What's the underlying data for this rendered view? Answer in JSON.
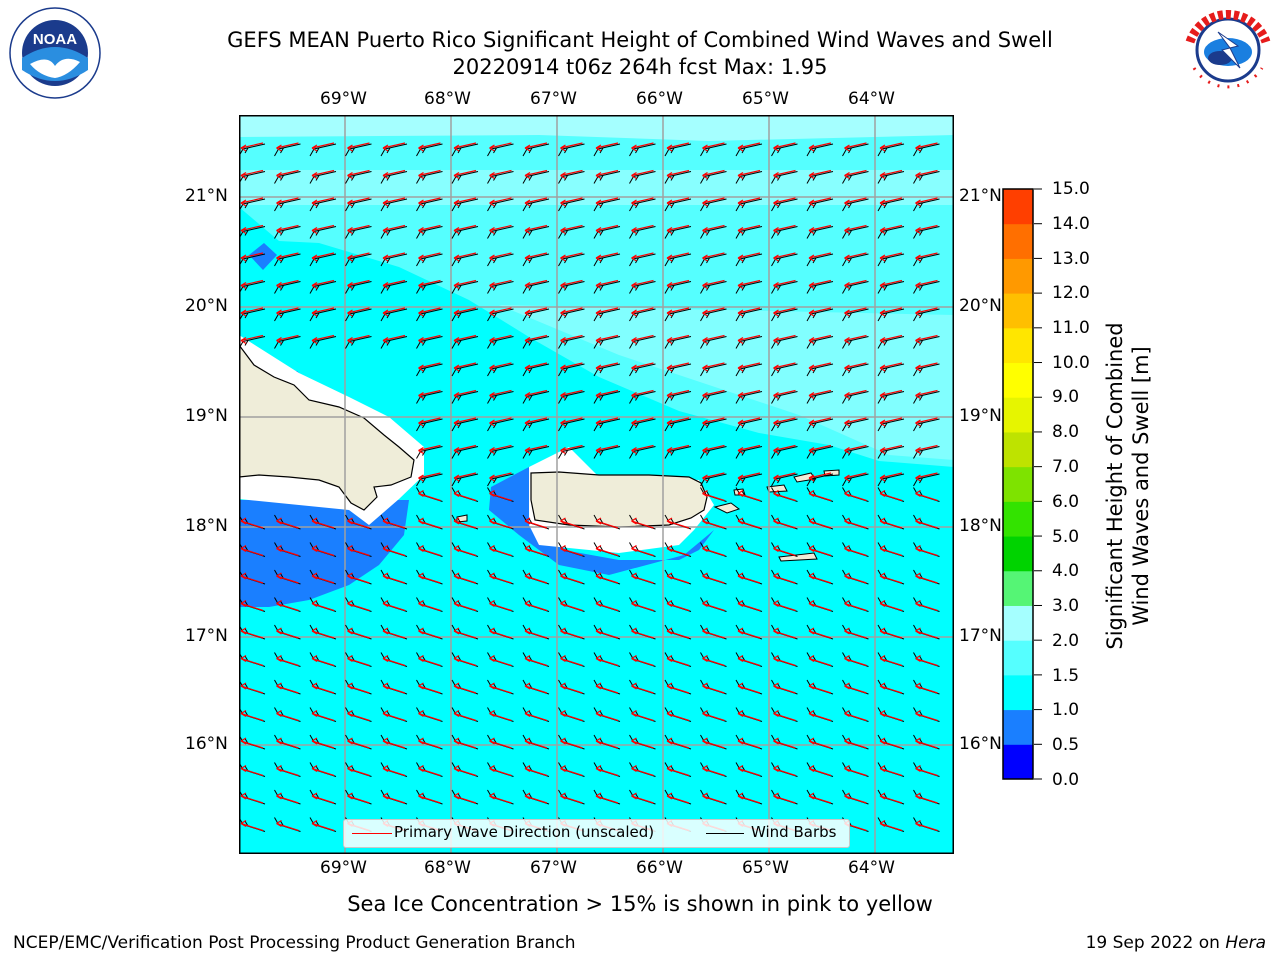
{
  "header": {
    "title_line1": "GEFS MEAN Puerto Rico Significant Height of Combined Wind Waves and Swell",
    "title_line2": "20220914 t06z 264h fcst   Max: 1.95"
  },
  "logos": {
    "left": {
      "icon": "noaa-logo",
      "text": "NOAA"
    },
    "right": {
      "icon": "nws-logo",
      "text": "NATIONAL WEATHER SERVICE"
    }
  },
  "map": {
    "lon_labels": [
      "69°W",
      "68°W",
      "67°W",
      "66°W",
      "65°W",
      "64°W"
    ],
    "lat_labels": [
      "21°N",
      "20°N",
      "19°N",
      "18°N",
      "17°N",
      "16°N"
    ],
    "lon_range": [
      -70,
      -63.25
    ],
    "lat_range": [
      15.1,
      21.75
    ],
    "colors": {
      "ocean_main": "#00ffff",
      "ocean_light": "#a5ffff",
      "low_wave": "#1a7fff",
      "land": "#efedd9",
      "no_data": "#ffffff",
      "wave_arrow": "#ff0000",
      "wind_barb": "#000000",
      "grid": "#a0a0a0"
    }
  },
  "legend": {
    "wave_label": "Primary Wave Direction (unscaled)",
    "barb_label": "Wind Barbs"
  },
  "colorbar": {
    "label_line1": "Significant Height of Combined",
    "label_line2": "Wind Waves and Swell [m]",
    "ticks": [
      "15.0",
      "14.0",
      "13.0",
      "12.0",
      "11.0",
      "10.0",
      "9.0",
      "8.0",
      "7.0",
      "6.0",
      "5.0",
      "4.0",
      "3.0",
      "2.0",
      "1.5",
      "1.0",
      "0.5",
      "0.0"
    ],
    "colors": [
      "#0000ff",
      "#1a7fff",
      "#00ffff",
      "#55ffff",
      "#a5ffff",
      "#55f575",
      "#00d300",
      "#33e300",
      "#7ee300",
      "#bee300",
      "#e6f500",
      "#ffff00",
      "#ffe600",
      "#ffbf00",
      "#ff9900",
      "#ff6f00",
      "#ff3f00"
    ]
  },
  "caption": "Sea Ice Concentration > 15% is shown in pink to yellow",
  "footer": {
    "left": "NCEP/EMC/Verification Post Processing Product Generation Branch",
    "date": "19 Sep 2022 on ",
    "host": "Hera"
  }
}
